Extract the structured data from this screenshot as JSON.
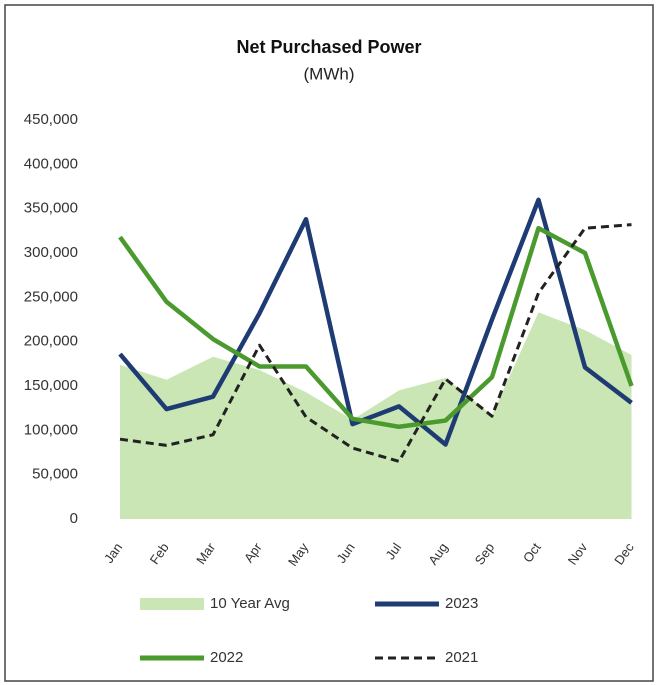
{
  "chart_data": {
    "type": "line",
    "title": "Net Purchased Power",
    "subtitle": "(MWh)",
    "categories": [
      "Jan",
      "Feb",
      "Mar",
      "Apr",
      "May",
      "Jun",
      "Jul",
      "Aug",
      "Sep",
      "Oct",
      "Nov",
      "Dec"
    ],
    "series": [
      {
        "name": "10 Year Avg",
        "color": "#c9e6b4",
        "style": "area",
        "values": [
          174000,
          157000,
          183000,
          168000,
          143000,
          112000,
          145000,
          159000,
          117000,
          233000,
          213000,
          185000
        ]
      },
      {
        "name": "2023",
        "color": "#1f3b73",
        "style": "line",
        "values": [
          186000,
          124000,
          138000,
          232000,
          338000,
          107000,
          127000,
          84000,
          225000,
          360000,
          171000,
          131000
        ]
      },
      {
        "name": "2022",
        "color": "#4a9a2e",
        "style": "line",
        "values": [
          318000,
          245000,
          203000,
          172000,
          172000,
          113000,
          104000,
          111000,
          160000,
          328000,
          300000,
          150000
        ]
      },
      {
        "name": "2021",
        "color": "#222222",
        "style": "dashed",
        "values": [
          90000,
          83000,
          95000,
          196000,
          115000,
          80000,
          65000,
          158000,
          116000,
          255000,
          328000,
          332000
        ]
      }
    ],
    "ylim": [
      0,
      450000
    ],
    "yticks": [
      0,
      {
        "value": 50000,
        "label": "50,000"
      },
      {
        "value": 100000,
        "label": "100,000"
      },
      {
        "value": 150000,
        "label": "150,000"
      },
      {
        "value": 200000,
        "label": "200,000"
      },
      {
        "value": 250000,
        "label": "250,000"
      },
      {
        "value": 300000,
        "label": "300,000"
      },
      {
        "value": 350000,
        "label": "350,000"
      },
      {
        "value": 400000,
        "label": "400,000"
      },
      {
        "value": 450000,
        "label": "450,000"
      }
    ],
    "grid": false
  }
}
